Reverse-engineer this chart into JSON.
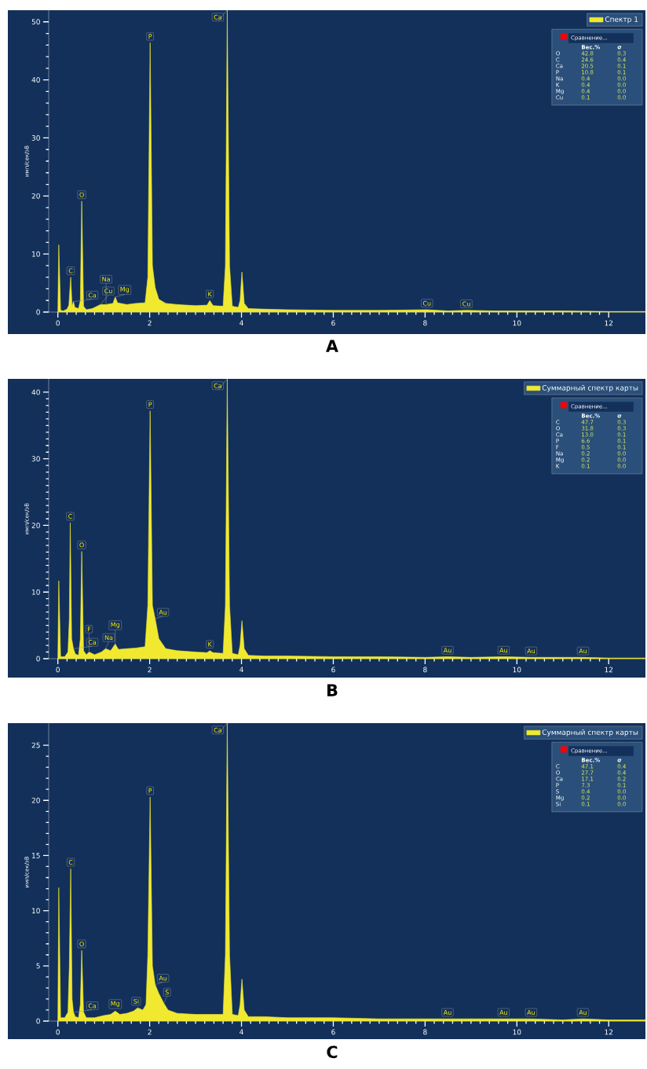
{
  "chart_data": [
    {
      "type": "area",
      "title": "A",
      "ylabel": "имп/сек/эВ",
      "legend": "top right",
      "xlim": [
        -0.2,
        12.8
      ],
      "ylim": [
        0,
        52
      ],
      "xticks": [
        0,
        2,
        4,
        6,
        8,
        10,
        12
      ],
      "yticks": [
        0,
        10,
        20,
        30,
        40,
        50
      ],
      "x": [
        0,
        0.02,
        0.06,
        0.12,
        0.2,
        0.24,
        0.28,
        0.31,
        0.34,
        0.37,
        0.45,
        0.49,
        0.52,
        0.56,
        0.62,
        0.75,
        0.93,
        1.05,
        1.2,
        1.25,
        1.3,
        1.5,
        1.7,
        1.9,
        1.96,
        2.01,
        2.06,
        2.12,
        2.2,
        2.35,
        2.6,
        3.0,
        3.25,
        3.31,
        3.38,
        3.6,
        3.65,
        3.69,
        3.74,
        3.8,
        3.93,
        3.97,
        4.01,
        4.06,
        4.15,
        4.5,
        5,
        6,
        7,
        8.04,
        8.5,
        8.9,
        9.5,
        10,
        11,
        12,
        12.8
      ],
      "series": [
        {
          "name": "Спектр 1",
          "color": "#f0e930",
          "values": [
            0,
            11.6,
            0.3,
            0.2,
            0.5,
            1.2,
            6.0,
            1.0,
            1.8,
            0.8,
            0.6,
            2.0,
            19.1,
            1.0,
            0.4,
            0.6,
            1.3,
            1.3,
            1.5,
            2.6,
            1.6,
            1.3,
            1.5,
            1.6,
            6.0,
            46.4,
            8.0,
            4.2,
            2.2,
            1.5,
            1.3,
            1.1,
            1.2,
            2.0,
            1.1,
            1.0,
            8.0,
            52,
            8.0,
            1.0,
            0.8,
            2.0,
            6.9,
            1.5,
            0.6,
            0.5,
            0.4,
            0.3,
            0.3,
            0.4,
            0.2,
            0.3,
            0.2,
            0.2,
            0.2,
            0.1,
            0.1
          ]
        }
      ],
      "annotations": [
        {
          "text": "C",
          "x": 0.28,
          "y": 6.0
        },
        {
          "text": "Ca",
          "x": 0.34,
          "y": 1.8
        },
        {
          "text": "O",
          "x": 0.52,
          "y": 19.1
        },
        {
          "text": "Cu",
          "x": 0.93,
          "y": 1.3
        },
        {
          "text": "Na",
          "x": 1.05,
          "y": 1.3
        },
        {
          "text": "Mg",
          "x": 1.25,
          "y": 2.6
        },
        {
          "text": "P",
          "x": 2.01,
          "y": 46.4
        },
        {
          "text": "K",
          "x": 3.31,
          "y": 2.0
        },
        {
          "text": "Ca",
          "x": 3.69,
          "y": 52
        },
        {
          "text": "Cu",
          "x": 8.04,
          "y": 0.4
        },
        {
          "text": "Cu",
          "x": 8.9,
          "y": 0.3
        },
        "Сравнение...",
        "Вес.%",
        "σ",
        "O",
        "42.8",
        "0.3",
        "C",
        "24.6",
        "0.4",
        "Ca",
        "20.5",
        "0.1",
        "P",
        "10.8",
        "0.1",
        "Na",
        "0.4",
        "0.0",
        "K",
        "0.4",
        "0.0",
        "Mg",
        "0.4",
        "0.0",
        "Cu",
        "0.1",
        "0.0"
      ]
    },
    {
      "type": "area",
      "title": "B",
      "ylabel": "имп/сек/эВ",
      "legend": "top right",
      "xlim": [
        -0.2,
        12.8
      ],
      "ylim": [
        0,
        42
      ],
      "xticks": [
        0,
        2,
        4,
        6,
        8,
        10,
        12
      ],
      "yticks": [
        0,
        10,
        20,
        30,
        40
      ],
      "x": [
        0,
        0.02,
        0.06,
        0.15,
        0.22,
        0.25,
        0.27,
        0.3,
        0.34,
        0.38,
        0.45,
        0.49,
        0.52,
        0.56,
        0.62,
        0.68,
        0.8,
        0.95,
        1.04,
        1.15,
        1.25,
        1.32,
        1.5,
        1.7,
        1.9,
        1.96,
        2.01,
        2.06,
        2.12,
        2.2,
        2.35,
        2.6,
        3.0,
        3.25,
        3.31,
        3.38,
        3.6,
        3.65,
        3.69,
        3.74,
        3.8,
        3.93,
        3.97,
        4.01,
        4.06,
        4.15,
        4.5,
        5,
        6,
        7,
        8,
        8.49,
        9,
        9.71,
        10.31,
        11,
        11.44,
        12,
        12.8
      ],
      "series": [
        {
          "name": "Суммарный спектр карты",
          "color": "#f0e930",
          "values": [
            0,
            11.7,
            0.3,
            0.3,
            1.0,
            6.0,
            20.4,
            3.0,
            1.5,
            0.7,
            0.5,
            3.0,
            16.1,
            1.2,
            0.6,
            1.0,
            0.6,
            1.0,
            1.5,
            1.2,
            2.2,
            1.4,
            1.5,
            1.6,
            1.8,
            8.0,
            37.2,
            8.0,
            6.0,
            3.0,
            1.5,
            1.2,
            1.0,
            0.9,
            1.2,
            0.9,
            0.8,
            8.0,
            42,
            8.0,
            0.8,
            0.6,
            2.0,
            5.7,
            1.5,
            0.5,
            0.4,
            0.4,
            0.3,
            0.3,
            0.2,
            0.3,
            0.2,
            0.3,
            0.2,
            0.2,
            0.2,
            0.1,
            0.1
          ]
        }
      ],
      "annotations": [
        {
          "text": "C",
          "x": 0.27,
          "y": 20.4
        },
        {
          "text": "Ca",
          "x": 0.34,
          "y": 1.5
        },
        {
          "text": "O",
          "x": 0.52,
          "y": 16.1
        },
        {
          "text": "F",
          "x": 0.68,
          "y": 1.0
        },
        {
          "text": "Na",
          "x": 1.04,
          "y": 1.5
        },
        {
          "text": "Mg",
          "x": 1.25,
          "y": 2.2
        },
        {
          "text": "P",
          "x": 2.01,
          "y": 37.2
        },
        {
          "text": "Au",
          "x": 2.12,
          "y": 6.0
        },
        {
          "text": "K",
          "x": 3.31,
          "y": 1.2
        },
        {
          "text": "Ca",
          "x": 3.69,
          "y": 42
        },
        {
          "text": "Au",
          "x": 8.49,
          "y": 0.3
        },
        {
          "text": "Au",
          "x": 9.71,
          "y": 0.3
        },
        {
          "text": "Au",
          "x": 10.31,
          "y": 0.2
        },
        {
          "text": "Au",
          "x": 11.44,
          "y": 0.2
        },
        "Сравнение...",
        "Вес.%",
        "σ",
        "C",
        "47.7",
        "0.3",
        "O",
        "31.8",
        "0.3",
        "Ca",
        "13.0",
        "0.1",
        "P",
        "6.6",
        "0.1",
        "F",
        "0.5",
        "0.1",
        "Na",
        "0.2",
        "0.0",
        "Mg",
        "0.2",
        "0.0",
        "K",
        "0.1",
        "0.0"
      ]
    },
    {
      "type": "area",
      "title": "C",
      "ylabel": "имп/сек/эВ",
      "legend": "top right",
      "xlim": [
        -0.2,
        12.8
      ],
      "ylim": [
        0,
        27
      ],
      "xticks": [
        0,
        2,
        4,
        6,
        8,
        10,
        12
      ],
      "yticks": [
        0,
        5,
        10,
        15,
        20,
        25
      ],
      "x": [
        0,
        0.02,
        0.06,
        0.15,
        0.22,
        0.25,
        0.28,
        0.31,
        0.34,
        0.38,
        0.45,
        0.49,
        0.52,
        0.56,
        0.62,
        0.8,
        1.0,
        1.15,
        1.25,
        1.35,
        1.5,
        1.65,
        1.74,
        1.85,
        1.92,
        1.96,
        2.01,
        2.06,
        2.12,
        2.2,
        2.31,
        2.4,
        2.6,
        3.0,
        3.31,
        3.5,
        3.6,
        3.65,
        3.69,
        3.74,
        3.8,
        3.93,
        3.97,
        4.01,
        4.06,
        4.15,
        4.5,
        5,
        6,
        7,
        8,
        8.49,
        9,
        9.71,
        10,
        10.31,
        11,
        11.44,
        12,
        12.8
      ],
      "series": [
        {
          "name": "Суммарный спектр карты",
          "color": "#f0e930",
          "values": [
            0,
            12.1,
            0.3,
            0.3,
            0.8,
            5.0,
            13.8,
            2.0,
            0.8,
            0.4,
            0.3,
            1.5,
            6.4,
            0.8,
            0.3,
            0.3,
            0.5,
            0.6,
            0.9,
            0.6,
            0.7,
            0.9,
            1.2,
            1.0,
            1.5,
            6.0,
            20.3,
            5.0,
            3.3,
            2.5,
            1.6,
            1.0,
            0.7,
            0.6,
            0.6,
            0.6,
            0.6,
            6.0,
            27,
            6.0,
            0.6,
            0.5,
            1.5,
            3.8,
            1.0,
            0.4,
            0.4,
            0.3,
            0.3,
            0.2,
            0.2,
            0.2,
            0.2,
            0.2,
            0.2,
            0.2,
            0.1,
            0.2,
            0.1,
            0.1
          ]
        }
      ],
      "annotations": [
        {
          "text": "C",
          "x": 0.28,
          "y": 13.8
        },
        {
          "text": "Ca",
          "x": 0.34,
          "y": 0.8
        },
        {
          "text": "O",
          "x": 0.52,
          "y": 6.4
        },
        {
          "text": "Mg",
          "x": 1.25,
          "y": 0.9
        },
        {
          "text": "Si",
          "x": 1.74,
          "y": 1.2
        },
        {
          "text": "P",
          "x": 2.01,
          "y": 20.3
        },
        {
          "text": "Au",
          "x": 2.12,
          "y": 3.3
        },
        {
          "text": "S",
          "x": 2.31,
          "y": 1.6
        },
        {
          "text": "Ca",
          "x": 3.69,
          "y": 27
        },
        {
          "text": "Au",
          "x": 8.49,
          "y": 0.2
        },
        {
          "text": "Au",
          "x": 9.71,
          "y": 0.2
        },
        {
          "text": "Au",
          "x": 10.31,
          "y": 0.2
        },
        {
          "text": "Au",
          "x": 11.44,
          "y": 0.2
        },
        "Сравнение...",
        "Вес.%",
        "σ",
        "C",
        "47.1",
        "0.4",
        "O",
        "27.7",
        "0.4",
        "Ca",
        "17.1",
        "0.2",
        "P",
        "7.3",
        "0.1",
        "S",
        "0.4",
        "0.0",
        "Mg",
        "0.2",
        "0.0",
        "Si",
        "0.1",
        "0.0"
      ]
    }
  ]
}
